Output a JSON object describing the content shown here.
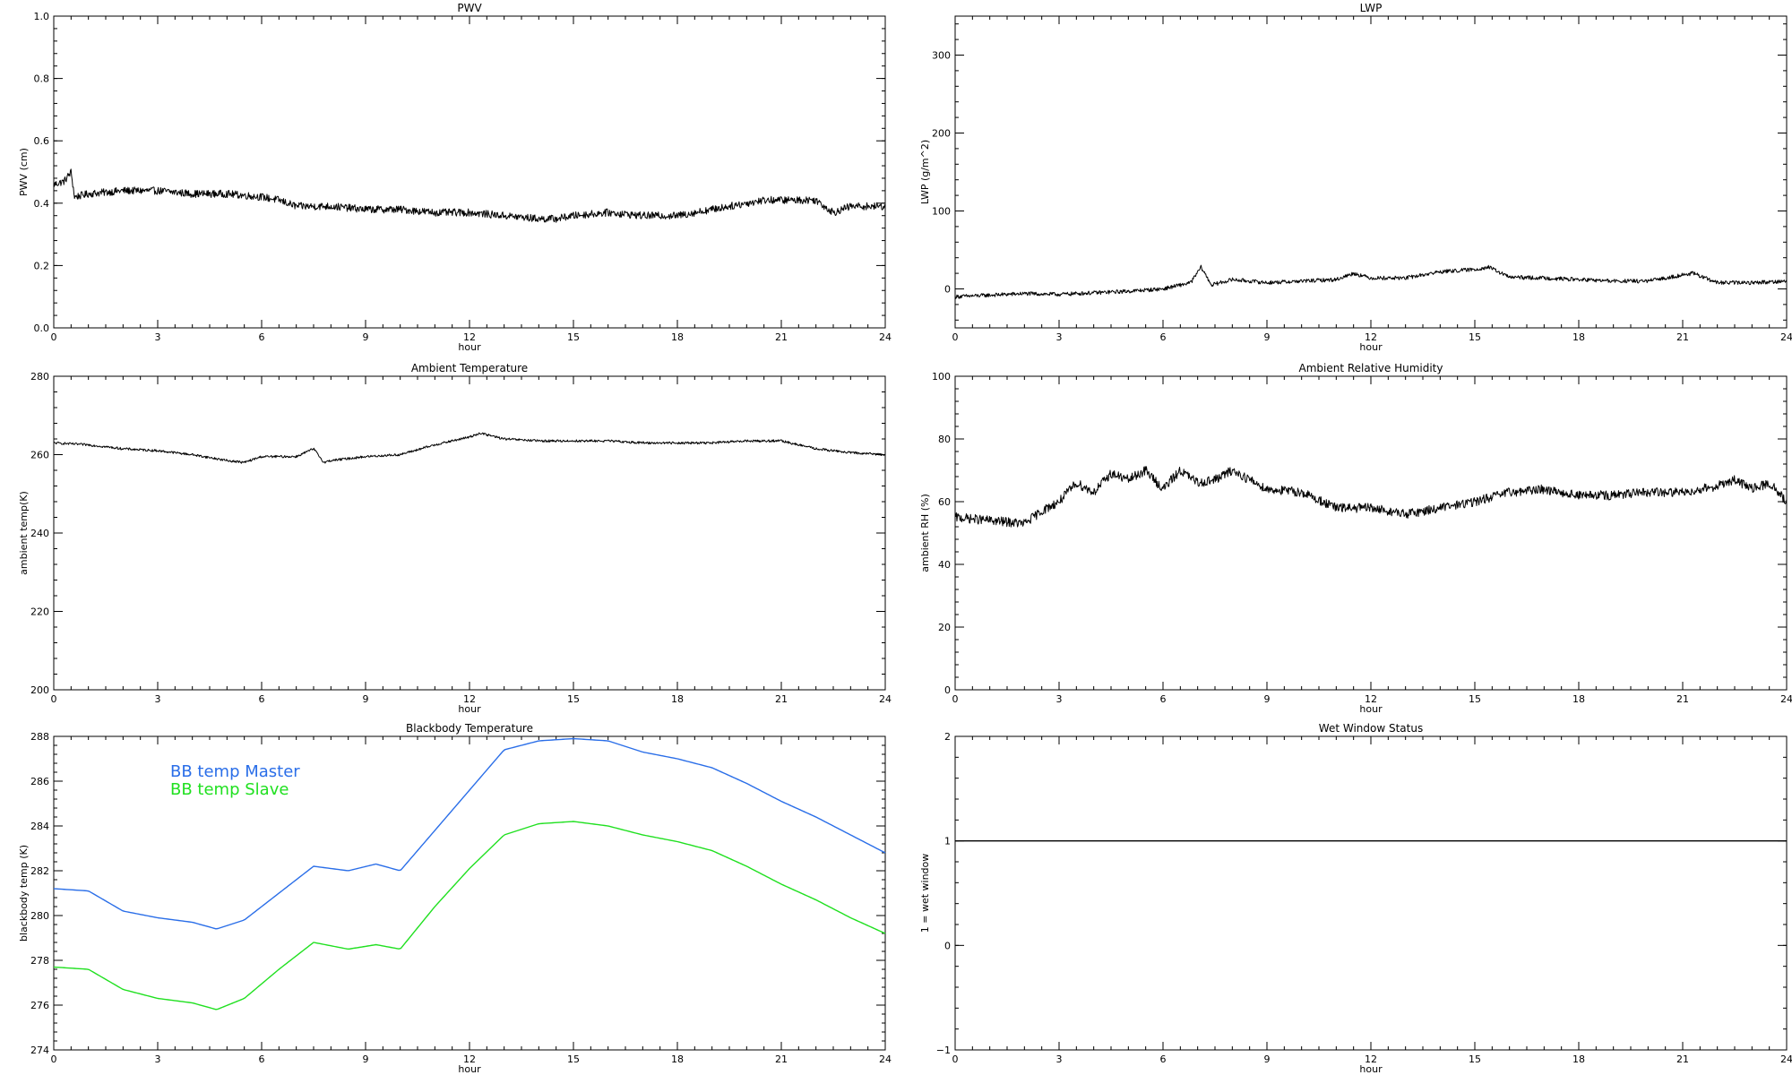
{
  "chart_data": [
    {
      "id": "pwv",
      "type": "line",
      "title": "PWV",
      "xlabel": "hour",
      "ylabel": "PWV (cm)",
      "xlim": [
        0,
        24
      ],
      "ylim": [
        0.0,
        1.0
      ],
      "xticks": [
        0,
        3,
        6,
        9,
        12,
        15,
        18,
        21,
        24
      ],
      "yticks": [
        0.0,
        0.2,
        0.4,
        0.6,
        0.8,
        1.0
      ],
      "ytick_labels": [
        "0.0",
        "0.2",
        "0.4",
        "0.6",
        "0.8",
        "1.0"
      ],
      "series": [
        {
          "color": "#000000",
          "noise": 0.012,
          "x": [
            0,
            0.3,
            0.5,
            0.6,
            1,
            2,
            3,
            4,
            5,
            6,
            6.5,
            7,
            8,
            9,
            10,
            11,
            12,
            13,
            14,
            14.5,
            15,
            16,
            17,
            18,
            19,
            20,
            20.5,
            21,
            22,
            22.5,
            23,
            24
          ],
          "y": [
            0.46,
            0.47,
            0.5,
            0.42,
            0.43,
            0.44,
            0.44,
            0.43,
            0.43,
            0.42,
            0.41,
            0.39,
            0.39,
            0.38,
            0.38,
            0.37,
            0.37,
            0.36,
            0.35,
            0.35,
            0.36,
            0.37,
            0.36,
            0.36,
            0.38,
            0.4,
            0.41,
            0.41,
            0.41,
            0.37,
            0.39,
            0.39
          ]
        }
      ]
    },
    {
      "id": "lwp",
      "type": "line",
      "title": "LWP",
      "xlabel": "hour",
      "ylabel": "LWP (g/m^2)",
      "xlim": [
        0,
        24
      ],
      "ylim": [
        -50,
        350
      ],
      "xticks": [
        0,
        3,
        6,
        9,
        12,
        15,
        18,
        21,
        24
      ],
      "yticks": [
        0,
        100,
        200,
        300
      ],
      "ytick_labels": [
        "0",
        "100",
        "200",
        "300"
      ],
      "series": [
        {
          "color": "#000000",
          "noise": 2.5,
          "x": [
            0,
            1,
            2,
            3,
            4,
            5,
            6,
            6.8,
            7.1,
            7.4,
            8,
            9,
            10,
            11,
            11.5,
            12,
            13,
            14,
            15,
            15.4,
            16,
            17,
            18,
            19,
            20,
            21,
            21.3,
            22,
            23,
            24
          ],
          "y": [
            -10,
            -8,
            -6,
            -7,
            -5,
            -3,
            0,
            8,
            28,
            5,
            12,
            8,
            10,
            12,
            20,
            14,
            14,
            22,
            25,
            28,
            15,
            14,
            12,
            10,
            10,
            18,
            20,
            8,
            8,
            10
          ]
        }
      ]
    },
    {
      "id": "ambient-temp",
      "type": "line",
      "title": "Ambient Temperature",
      "xlabel": "hour",
      "ylabel": "ambient temp(K)",
      "xlim": [
        0,
        24
      ],
      "ylim": [
        200,
        280
      ],
      "xticks": [
        0,
        3,
        6,
        9,
        12,
        15,
        18,
        21,
        24
      ],
      "yticks": [
        200,
        220,
        240,
        260,
        280
      ],
      "ytick_labels": [
        "200",
        "220",
        "240",
        "260",
        "280"
      ],
      "series": [
        {
          "color": "#000000",
          "noise": 0.3,
          "x": [
            0,
            1,
            2,
            3,
            4,
            5,
            5.5,
            6,
            7,
            7.5,
            7.8,
            8,
            9,
            10,
            11,
            12,
            12.3,
            13,
            14,
            15,
            16,
            17,
            18,
            19,
            20,
            21,
            22,
            23,
            24
          ],
          "y": [
            263,
            262.5,
            261.5,
            261,
            260,
            258.5,
            258,
            259.5,
            259.5,
            261.5,
            258,
            258.5,
            259.5,
            260,
            262.5,
            264.5,
            265.5,
            264,
            263.5,
            263.5,
            263.5,
            263,
            263,
            263,
            263.5,
            263.5,
            261.5,
            260.5,
            260
          ]
        }
      ]
    },
    {
      "id": "ambient-rh",
      "type": "line",
      "title": "Ambient Relative Humidity",
      "xlabel": "hour",
      "ylabel": "ambient RH (%)",
      "xlim": [
        0,
        24
      ],
      "ylim": [
        0,
        100
      ],
      "xticks": [
        0,
        3,
        6,
        9,
        12,
        15,
        18,
        21,
        24
      ],
      "yticks": [
        0,
        20,
        40,
        60,
        80,
        100
      ],
      "ytick_labels": [
        "0",
        "20",
        "40",
        "60",
        "80",
        "100"
      ],
      "series": [
        {
          "color": "#000000",
          "noise": 1.5,
          "x": [
            0,
            1,
            2,
            2.5,
            3,
            3.5,
            4,
            4.5,
            5,
            5.5,
            6,
            6.5,
            7,
            7.5,
            8,
            9,
            10,
            11,
            12,
            13,
            14,
            15,
            16,
            17,
            18,
            19,
            20,
            21,
            22,
            22.5,
            23,
            23.5,
            24
          ],
          "y": [
            55,
            54,
            53,
            57,
            60,
            66,
            63,
            69,
            67,
            70,
            64,
            70,
            66,
            67,
            70,
            64,
            63,
            58,
            58,
            56,
            58,
            60,
            63,
            64,
            62,
            62,
            63,
            63,
            65,
            67,
            64,
            66,
            60
          ]
        }
      ]
    },
    {
      "id": "blackbody-temp",
      "type": "line",
      "title": "Blackbody Temperature",
      "xlabel": "hour",
      "ylabel": "blackbody temp (K)",
      "xlim": [
        0,
        24
      ],
      "ylim": [
        274,
        288
      ],
      "xticks": [
        0,
        3,
        6,
        9,
        12,
        15,
        18,
        21,
        24
      ],
      "yticks": [
        274,
        276,
        278,
        280,
        282,
        284,
        286,
        288
      ],
      "ytick_labels": [
        "274",
        "276",
        "278",
        "280",
        "282",
        "284",
        "286",
        "288"
      ],
      "legend": {
        "placement": "top-left",
        "entries": [
          "BB temp Master",
          "BB temp Slave"
        ]
      },
      "series": [
        {
          "name": "BB temp Master",
          "color": "#2a6ee8",
          "noise": 0,
          "x": [
            0,
            1,
            2,
            3,
            4,
            4.7,
            5.5,
            6.5,
            7.5,
            8.5,
            9.3,
            10,
            11,
            12,
            13,
            14,
            15,
            16,
            17,
            18,
            19,
            20,
            21,
            22,
            23,
            24
          ],
          "y": [
            281.2,
            281.1,
            280.2,
            279.9,
            279.7,
            279.4,
            279.8,
            281.0,
            282.2,
            282.0,
            282.3,
            282.0,
            283.8,
            285.6,
            287.4,
            287.8,
            287.9,
            287.8,
            287.3,
            287.0,
            286.6,
            285.9,
            285.1,
            284.4,
            283.6,
            282.8
          ]
        },
        {
          "name": "BB temp Slave",
          "color": "#20e020",
          "noise": 0,
          "x": [
            0,
            1,
            2,
            3,
            4,
            4.7,
            5.5,
            6.5,
            7.5,
            8.5,
            9.3,
            10,
            11,
            12,
            13,
            14,
            15,
            16,
            17,
            18,
            19,
            20,
            21,
            22,
            23,
            24
          ],
          "y": [
            277.7,
            277.6,
            276.7,
            276.3,
            276.1,
            275.8,
            276.3,
            277.6,
            278.8,
            278.5,
            278.7,
            278.5,
            280.4,
            282.1,
            283.6,
            284.1,
            284.2,
            284.0,
            283.6,
            283.3,
            282.9,
            282.2,
            281.4,
            280.7,
            279.9,
            279.2
          ]
        }
      ]
    },
    {
      "id": "wet-window",
      "type": "line",
      "title": "Wet Window Status",
      "xlabel": "hour",
      "ylabel": "1 = wet window",
      "xlim": [
        0,
        24
      ],
      "ylim": [
        -1,
        2
      ],
      "xticks": [
        0,
        3,
        6,
        9,
        12,
        15,
        18,
        21,
        24
      ],
      "yticks": [
        -1,
        0,
        1,
        2
      ],
      "ytick_labels": [
        "−1",
        "0",
        "1",
        "2"
      ],
      "series": [
        {
          "color": "#000000",
          "noise": 0,
          "x": [
            0,
            24
          ],
          "y": [
            1,
            1
          ]
        }
      ]
    }
  ]
}
